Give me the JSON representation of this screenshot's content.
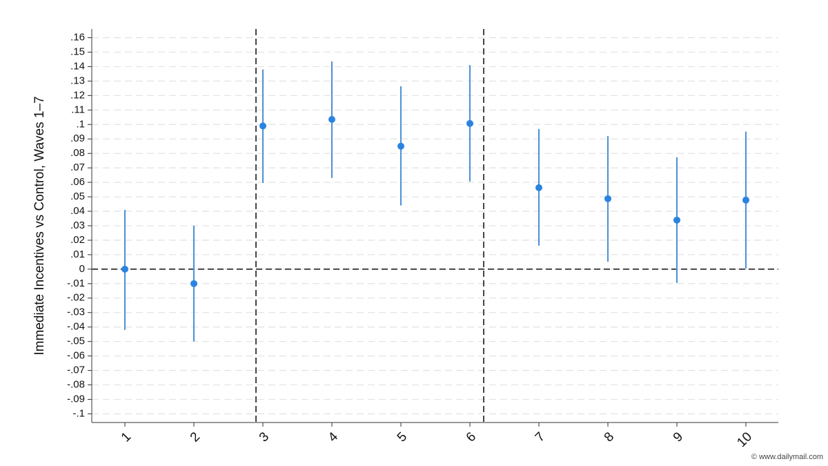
{
  "chart_data": {
    "type": "errorbar",
    "y_label": "Immediate Incentives  vs Control, Waves 1–7",
    "watermark": "© www.dailymail.com",
    "x": [
      1,
      2,
      3,
      4,
      5,
      6,
      7,
      8,
      9,
      10
    ],
    "values": [
      0,
      -0.01,
      0.099,
      0.1035,
      0.085,
      0.1007,
      0.0563,
      0.0487,
      0.0339,
      0.0477
    ],
    "lower": [
      -0.042,
      -0.05,
      0.0596,
      0.063,
      0.044,
      0.0606,
      0.0162,
      0.0052,
      -0.0095,
      0.0005
    ],
    "upper": [
      0.041,
      0.03,
      0.138,
      0.1436,
      0.1264,
      0.141,
      0.0969,
      0.092,
      0.0773,
      0.095
    ],
    "color": "#2b83e0",
    "bar_color": "#4a90d6",
    "xlim": [
      0.52,
      10.47
    ],
    "xticks": [
      1,
      2,
      3,
      4,
      5,
      6,
      7,
      8,
      9,
      10
    ],
    "ylim": [
      -0.106,
      0.166
    ],
    "yticks": [
      {
        "value": 0.16,
        "label": ".16"
      },
      {
        "value": 0.15,
        "label": ".15"
      },
      {
        "value": 0.14,
        "label": ".14"
      },
      {
        "value": 0.13,
        "label": ".13"
      },
      {
        "value": 0.12,
        "label": ".12"
      },
      {
        "value": 0.11,
        "label": ".11"
      },
      {
        "value": 0.1,
        "label": ".1"
      },
      {
        "value": 0.09,
        "label": ".09"
      },
      {
        "value": 0.08,
        "label": ".08"
      },
      {
        "value": 0.07,
        "label": ".07"
      },
      {
        "value": 0.06,
        "label": ".06"
      },
      {
        "value": 0.05,
        "label": ".05"
      },
      {
        "value": 0.04,
        "label": ".04"
      },
      {
        "value": 0.03,
        "label": ".03"
      },
      {
        "value": 0.02,
        "label": ".02"
      },
      {
        "value": 0.01,
        "label": ".01"
      },
      0,
      {
        "value": -0.01,
        "label": "-.01"
      },
      {
        "value": -0.02,
        "label": "-.02"
      },
      {
        "value": -0.03,
        "label": "-.03"
      },
      {
        "value": -0.04,
        "label": "-.04"
      },
      {
        "value": -0.05,
        "label": "-.05"
      },
      {
        "value": -0.06,
        "label": "-.06"
      },
      {
        "value": -0.07,
        "label": "-.07"
      },
      {
        "value": -0.08,
        "label": "-.08"
      },
      {
        "value": -0.09,
        "label": "-.09"
      },
      {
        "value": -0.1,
        "label": "-.1"
      }
    ],
    "grid": true,
    "vlines": [
      2.9,
      6.2
    ],
    "hlines": [
      0
    ]
  }
}
